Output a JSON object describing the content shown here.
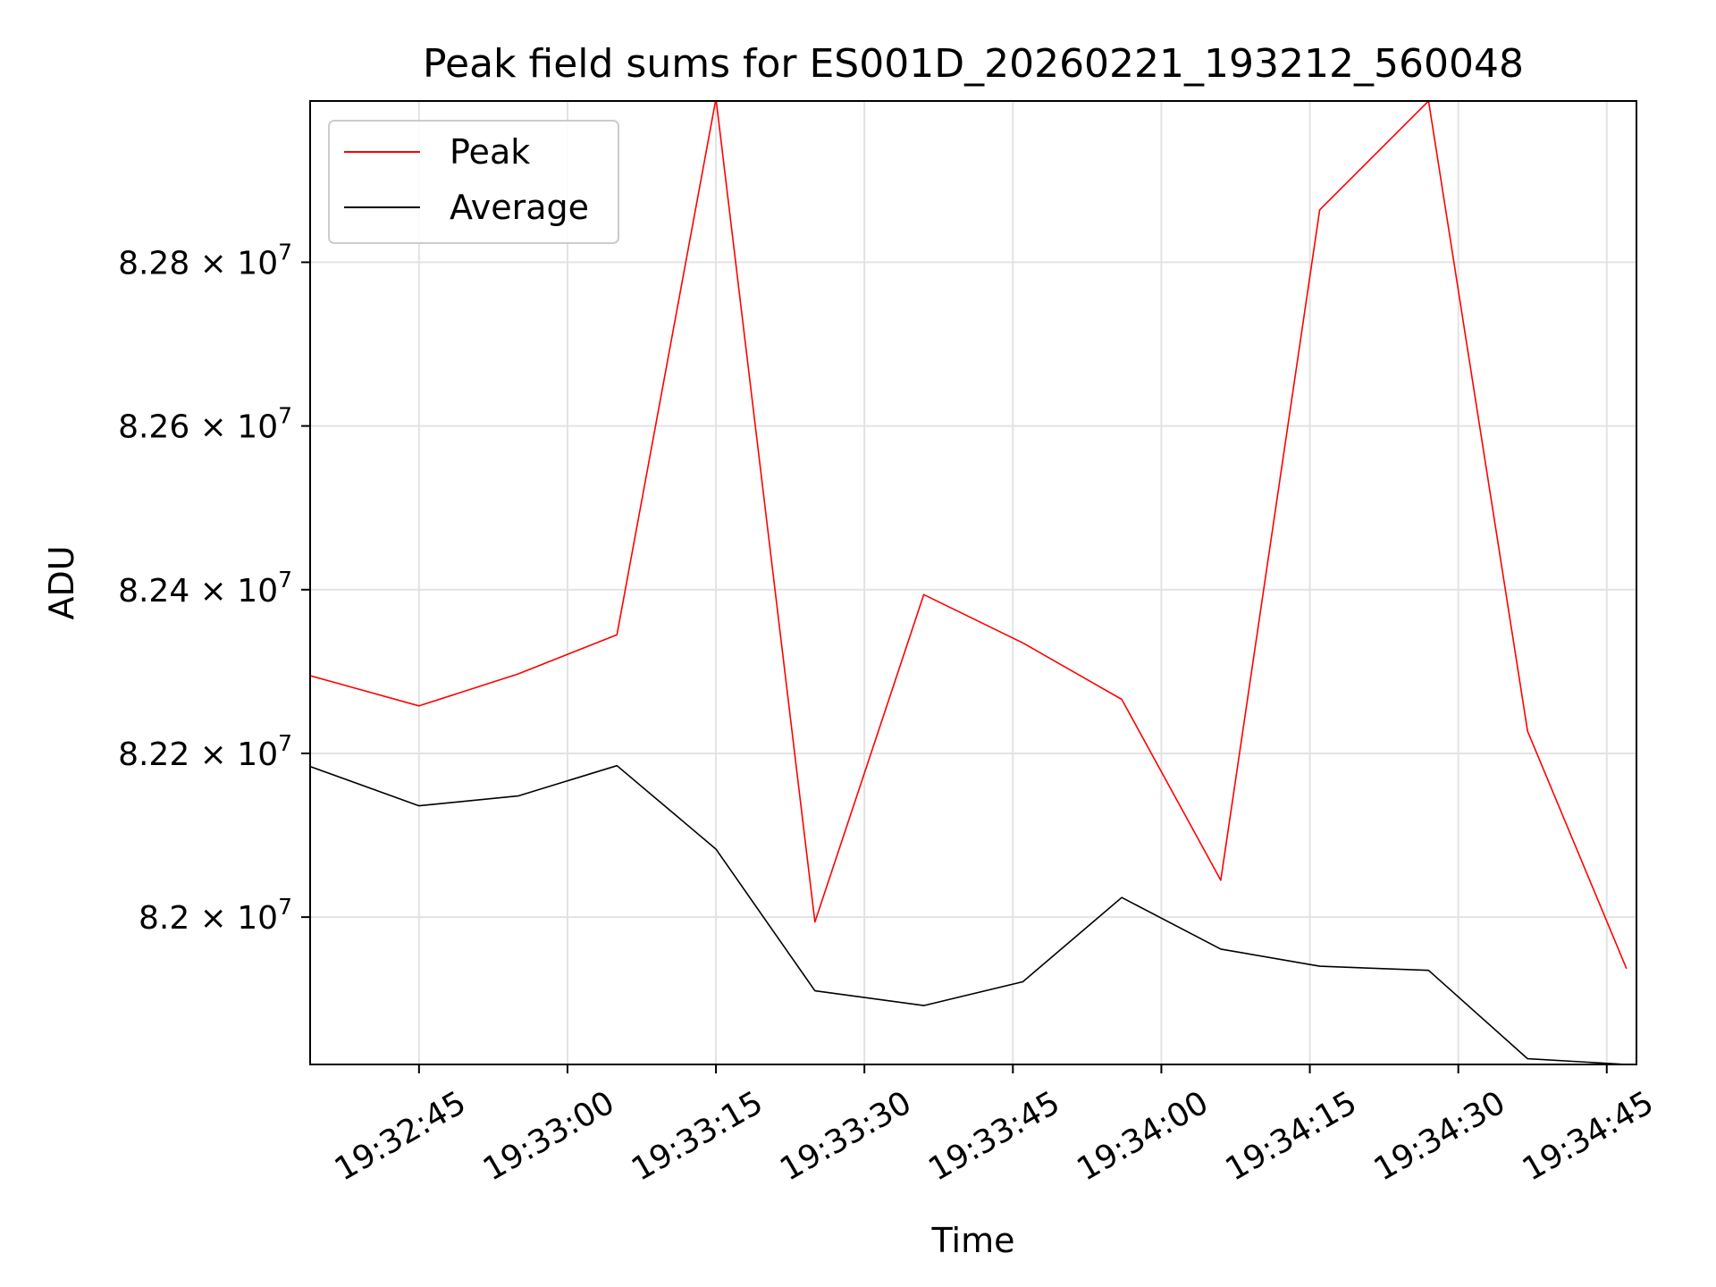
{
  "chart_data": {
    "type": "line",
    "title": "Peak field sums for ES001D_20260221_193212_560048",
    "xlabel": "Time",
    "ylabel": "ADU",
    "x_ticks": [
      "19:32:45",
      "19:33:00",
      "19:33:15",
      "19:33:30",
      "19:33:45",
      "19:34:00",
      "19:34:15",
      "19:34:30",
      "19:34:45"
    ],
    "y_ticks": [
      {
        "value": 82000000,
        "mantissa": "8.2",
        "exp": "7"
      },
      {
        "value": 82200000,
        "mantissa": "8.22",
        "exp": "7"
      },
      {
        "value": 82400000,
        "mantissa": "8.24",
        "exp": "7"
      },
      {
        "value": 82600000,
        "mantissa": "8.26",
        "exp": "7"
      },
      {
        "value": 82800000,
        "mantissa": "8.28",
        "exp": "7"
      }
    ],
    "xlim": [
      "19:32:34",
      "19:34:48"
    ],
    "ylim": [
      81820000,
      82997000
    ],
    "grid": true,
    "legend_position": "upper-left",
    "x": [
      "19:32:34",
      "19:32:45",
      "19:32:55",
      "19:33:05",
      "19:33:15",
      "19:33:25",
      "19:33:36",
      "19:33:46",
      "19:33:56",
      "19:34:06",
      "19:34:16",
      "19:34:27",
      "19:34:37",
      "19:34:47"
    ],
    "series": [
      {
        "name": "Peak",
        "color": "#ff0000",
        "values": [
          82295000,
          82258000,
          82297000,
          82345000,
          83000000,
          81994000,
          82394000,
          82335000,
          82266000,
          82045000,
          82864000,
          82997000,
          82227000,
          81937000
        ]
      },
      {
        "name": "Average",
        "color": "#000000",
        "values": [
          82184000,
          82136000,
          82148000,
          82185000,
          82083000,
          81910000,
          81892000,
          81921000,
          82024000,
          81961000,
          81940000,
          81935000,
          81827000,
          81820000
        ]
      }
    ]
  }
}
